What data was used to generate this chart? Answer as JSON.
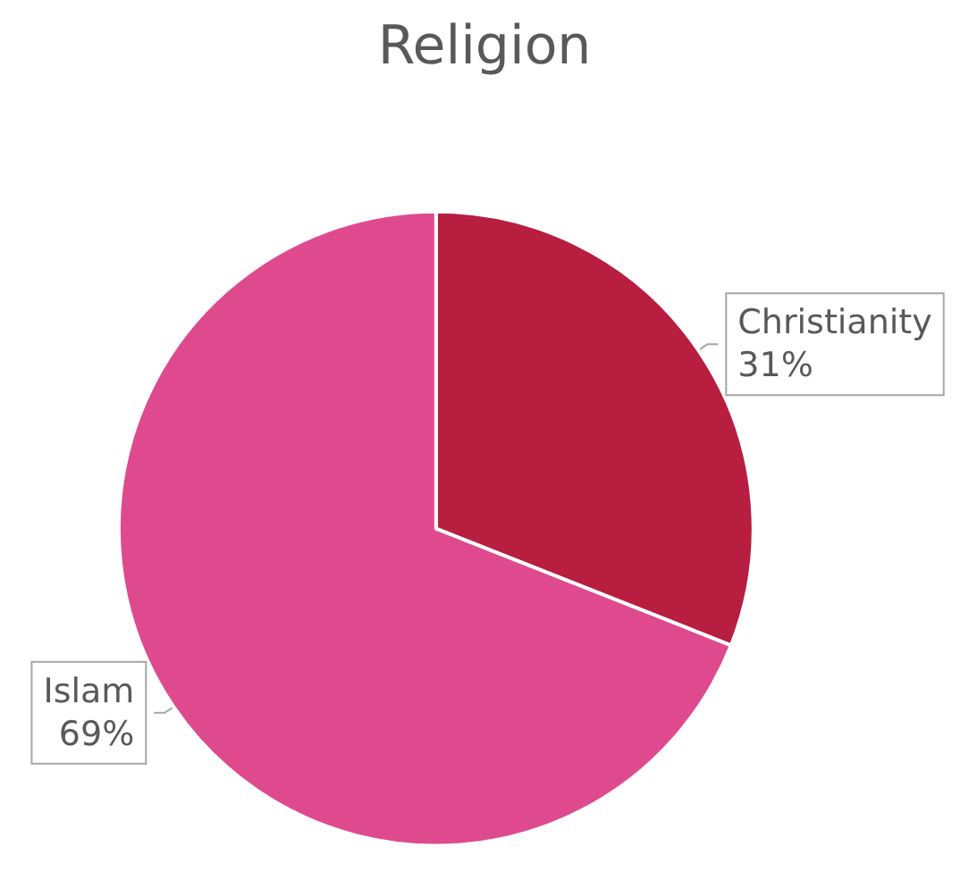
{
  "chart_data": {
    "type": "pie",
    "title": "Religion",
    "categories": [
      "Christianity",
      "Islam"
    ],
    "values": [
      31,
      69
    ],
    "colors": [
      "#b81e40",
      "#df4a8e"
    ],
    "value_labels": [
      "31%",
      "69%"
    ]
  }
}
